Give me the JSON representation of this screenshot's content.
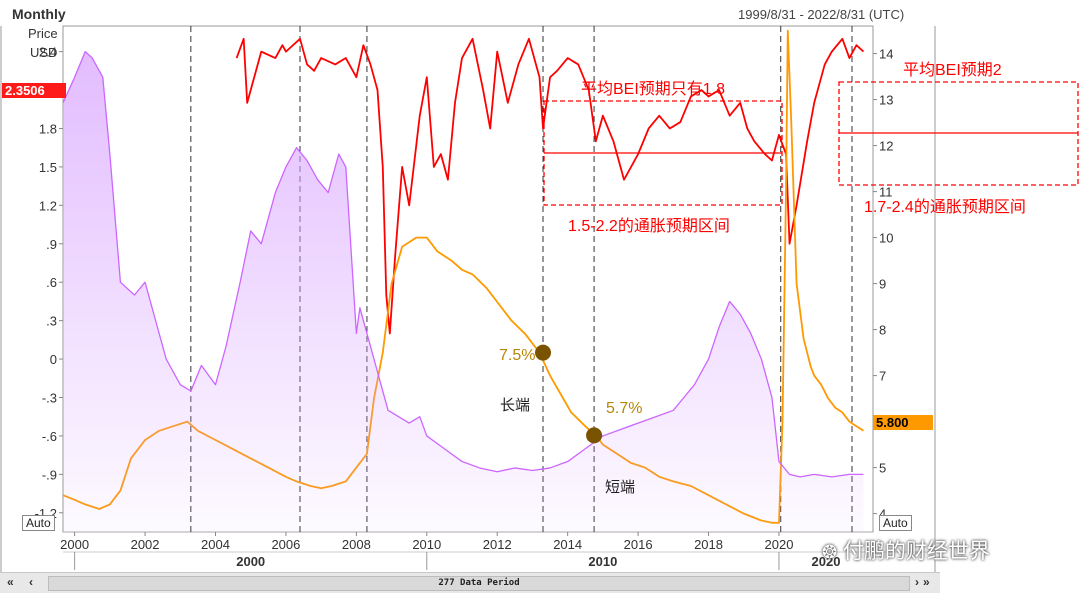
{
  "header": {
    "frequency": "Monthly",
    "unit_line1": "Price",
    "unit_line2": "USD",
    "date_range": "1999/8/31 - 2022/8/31 (UTC)"
  },
  "tags": {
    "left_value": "2.3506",
    "right_value": "5.800"
  },
  "buttons": {
    "auto_left": "Auto",
    "auto_right": "Auto"
  },
  "x_axis": {
    "years": [
      "2000",
      "2002",
      "2004",
      "2006",
      "2008",
      "2010",
      "2012",
      "2014",
      "2016",
      "2018",
      "2020"
    ],
    "decades": [
      "2000",
      "2010",
      "2020"
    ]
  },
  "y_left_ticks": [
    "2.4",
    "2.1",
    "1.8",
    "1.5",
    "1.2",
    ".9",
    ".6",
    ".3",
    "0",
    "-.3",
    "-.6",
    "-.9",
    "-1.2"
  ],
  "y_right_ticks": [
    "14",
    "13",
    "12",
    "11",
    "10",
    "9",
    "8",
    "7",
    "6",
    "5",
    "4"
  ],
  "scrollbar": {
    "label": "277 Data Period"
  },
  "annotations": {
    "box1_title": "平均BEI预期只有1.8",
    "box1_range": "1.5-2.2的通胀预期区间",
    "box2_title": "平均BEI预期2",
    "box2_range": "1.7-2.4的通胀预期区间",
    "pct_long": "7.5%",
    "pct_short": "5.7%",
    "long_end": "长端",
    "short_end": "短端",
    "watermark": "付鹏的财经世界"
  },
  "colors": {
    "bei": "#ff0000",
    "long_end": "#ff9900",
    "short_end": "#cc66ff",
    "annotation": "#ff0000",
    "marker": "#7a5300"
  },
  "chart_data": {
    "type": "line",
    "x_range": [
      1999.67,
      2022.67
    ],
    "left_axis": {
      "unit": "Price USD",
      "ylim": [
        -1.35,
        2.6
      ]
    },
    "right_axis": {
      "ylim": [
        3.6,
        14.6
      ]
    },
    "series": [
      {
        "axis": "left",
        "color": "#ff0000",
        "x": [
          2004.6,
          2004.8,
          2004.9,
          2005.0,
          2005.3,
          2005.7,
          2005.9,
          2006.0,
          2006.4,
          2006.6,
          2006.8,
          2007.0,
          2007.4,
          2007.7,
          2008.0,
          2008.2,
          2008.4,
          2008.6,
          2008.75,
          2008.85,
          2008.95,
          2009.1,
          2009.3,
          2009.5,
          2009.8,
          2010.0,
          2010.2,
          2010.4,
          2010.6,
          2010.8,
          2011.0,
          2011.3,
          2011.6,
          2011.8,
          2012.0,
          2012.3,
          2012.6,
          2012.9,
          2013.2,
          2013.3,
          2013.5,
          2013.7,
          2014.0,
          2014.3,
          2014.6,
          2014.8,
          2015.0,
          2015.3,
          2015.6,
          2015.8,
          2016.0,
          2016.3,
          2016.6,
          2016.9,
          2017.2,
          2017.5,
          2017.8,
          2018.0,
          2018.3,
          2018.6,
          2018.9,
          2019.1,
          2019.3,
          2019.6,
          2019.8,
          2020.0,
          2020.2,
          2020.3,
          2020.5,
          2020.8,
          2021.0,
          2021.3,
          2021.5,
          2021.8,
          2022.0,
          2022.2,
          2022.4
        ],
        "y": [
          2.35,
          2.5,
          2.0,
          2.1,
          2.4,
          2.35,
          2.45,
          2.4,
          2.5,
          2.3,
          2.25,
          2.35,
          2.3,
          2.35,
          2.2,
          2.45,
          2.3,
          2.1,
          1.5,
          0.5,
          0.2,
          0.8,
          1.5,
          1.2,
          1.9,
          2.2,
          1.5,
          1.6,
          1.4,
          2.0,
          2.35,
          2.5,
          2.1,
          1.8,
          2.4,
          2.0,
          2.3,
          2.5,
          2.2,
          1.8,
          2.2,
          2.25,
          2.35,
          2.3,
          2.1,
          1.7,
          1.9,
          1.7,
          1.4,
          1.5,
          1.6,
          1.8,
          1.9,
          1.8,
          1.85,
          2.05,
          2.1,
          2.05,
          2.1,
          1.9,
          2.0,
          1.8,
          1.7,
          1.6,
          1.55,
          1.75,
          1.6,
          0.9,
          1.2,
          1.7,
          2.0,
          2.3,
          2.4,
          2.5,
          2.35,
          2.45,
          2.4
        ],
        "name": ""
      },
      {
        "axis": "right",
        "color": "#ff9900",
        "x": [
          1999.67,
          2000.0,
          2000.3,
          2000.7,
          2001.0,
          2001.3,
          2001.6,
          2002.0,
          2002.4,
          2002.8,
          2003.2,
          2003.5,
          2004.0,
          2004.5,
          2005.0,
          2005.5,
          2006.0,
          2006.3,
          2006.7,
          2007.0,
          2007.3,
          2007.7,
          2008.0,
          2008.3,
          2008.5,
          2008.75,
          2009.0,
          2009.3,
          2009.7,
          2010.0,
          2010.3,
          2010.7,
          2011.0,
          2011.3,
          2011.7,
          2012.0,
          2012.4,
          2012.8,
          2013.2,
          2013.5,
          2013.8,
          2014.1,
          2014.5,
          2014.8,
          2015.0,
          2015.4,
          2015.8,
          2016.2,
          2016.6,
          2017.0,
          2017.5,
          2018.0,
          2018.5,
          2019.0,
          2019.5,
          2019.8,
          2020.0,
          2020.1,
          2020.2,
          2020.25,
          2020.35,
          2020.5,
          2020.7,
          2020.9,
          2021.0,
          2021.2,
          2021.4,
          2021.6,
          2021.8,
          2022.0,
          2022.2,
          2022.4
        ],
        "y": [
          4.4,
          4.3,
          4.2,
          4.1,
          4.2,
          4.5,
          5.2,
          5.6,
          5.8,
          5.9,
          6.0,
          5.8,
          5.6,
          5.4,
          5.2,
          5.0,
          4.8,
          4.7,
          4.6,
          4.55,
          4.6,
          4.7,
          5.0,
          5.3,
          6.5,
          7.5,
          9.0,
          9.8,
          10.0,
          10.0,
          9.7,
          9.5,
          9.3,
          9.2,
          8.9,
          8.6,
          8.2,
          7.9,
          7.5,
          7.0,
          6.6,
          6.2,
          5.9,
          5.7,
          5.5,
          5.3,
          5.1,
          5.0,
          4.8,
          4.7,
          4.6,
          4.4,
          4.2,
          4.0,
          3.85,
          3.8,
          3.8,
          6.0,
          11.0,
          14.5,
          12.5,
          9.0,
          7.8,
          7.2,
          7.0,
          6.8,
          6.5,
          6.3,
          6.2,
          6.0,
          5.9,
          5.8
        ],
        "name": ""
      },
      {
        "axis": "left",
        "color": "#cc66ff",
        "x": [
          1999.67,
          2000.0,
          2000.3,
          2000.5,
          2000.8,
          2001.0,
          2001.3,
          2001.7,
          2002.0,
          2002.3,
          2002.6,
          2003.0,
          2003.3,
          2003.6,
          2004.0,
          2004.3,
          2004.7,
          2005.0,
          2005.3,
          2005.7,
          2006.0,
          2006.3,
          2006.6,
          2006.9,
          2007.2,
          2007.5,
          2007.7,
          2008.0,
          2008.1,
          2008.3,
          2008.6,
          2008.9,
          2009.2,
          2009.5,
          2009.8,
          2010.0,
          2010.5,
          2011.0,
          2011.5,
          2012.0,
          2012.5,
          2013.0,
          2013.5,
          2014.0,
          2014.5,
          2015.0,
          2015.5,
          2016.0,
          2016.5,
          2017.0,
          2017.3,
          2017.6,
          2018.0,
          2018.3,
          2018.6,
          2018.9,
          2019.2,
          2019.5,
          2019.8,
          2020.0,
          2020.3,
          2020.6,
          2021.0,
          2021.5,
          2022.0,
          2022.4
        ],
        "y": [
          2.0,
          2.2,
          2.4,
          2.35,
          2.2,
          1.6,
          0.6,
          0.5,
          0.6,
          0.3,
          0.0,
          -0.2,
          -0.25,
          -0.05,
          -0.2,
          0.1,
          0.6,
          1.0,
          0.9,
          1.3,
          1.5,
          1.65,
          1.55,
          1.4,
          1.3,
          1.6,
          1.5,
          0.2,
          0.4,
          0.2,
          -0.1,
          -0.4,
          -0.45,
          -0.5,
          -0.45,
          -0.6,
          -0.7,
          -0.8,
          -0.85,
          -0.88,
          -0.85,
          -0.87,
          -0.85,
          -0.8,
          -0.7,
          -0.6,
          -0.55,
          -0.5,
          -0.45,
          -0.4,
          -0.3,
          -0.2,
          0.0,
          0.25,
          0.45,
          0.35,
          0.2,
          0.0,
          -0.3,
          -0.8,
          -0.9,
          -0.92,
          -0.9,
          -0.92,
          -0.9,
          -0.9
        ],
        "name": ""
      }
    ],
    "vlines_x": [
      2003.3,
      2006.4,
      2008.3,
      2013.3,
      2014.75,
      2020.05
    ],
    "markers": [
      {
        "x": 2013.3,
        "y": 7.5
      },
      {
        "x": 2014.75,
        "y": 5.7
      }
    ],
    "grid": false
  }
}
